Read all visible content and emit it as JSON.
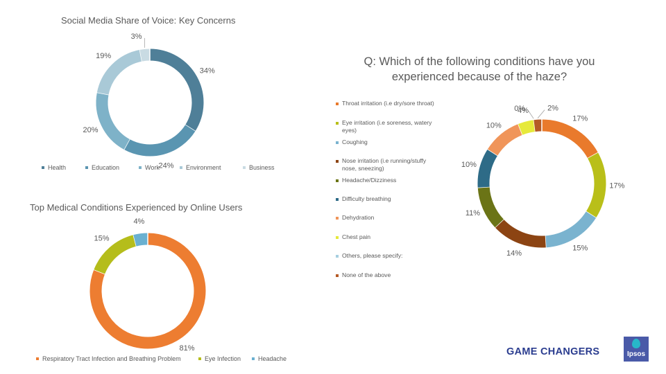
{
  "chart_data": [
    {
      "id": "c1",
      "type": "pie",
      "title": "Social Media Share of Voice: Key Concerns",
      "categories": [
        "Health",
        "Education",
        "Work",
        "Environment",
        "Business"
      ],
      "values": [
        34,
        24,
        20,
        19,
        3
      ],
      "labels": [
        "34%",
        "24%",
        "20%",
        "19%",
        "3%"
      ],
      "colors": [
        "#4f7f98",
        "#5a95b1",
        "#7eb2c8",
        "#a9c9d7",
        "#c9dbe3"
      ],
      "legend": "bottom"
    },
    {
      "id": "c2",
      "type": "pie",
      "title": "Top Medical Conditions Experienced by Online Users",
      "categories": [
        "Respiratory Tract Infection and Breathing Problem",
        "Eye Infection",
        "Headache"
      ],
      "values": [
        81,
        15,
        4
      ],
      "labels": [
        "81%",
        "15%",
        "4%"
      ],
      "colors": [
        "#ed7d31",
        "#b5bd1b",
        "#6ab0d0"
      ],
      "legend": "bottom"
    },
    {
      "id": "c3",
      "type": "pie",
      "title": "Q: Which of the following conditions have you experienced because of the haze?",
      "title_lines": [
        "Q: Which of the following conditions have you",
        "experienced because of the haze?"
      ],
      "categories": [
        "Throat irritation (i.e dry/sore throat)",
        "Eye irritation (i.e soreness, watery eyes)",
        "Coughing",
        "Nose irritation (i.e running/stuffy nose, sneezing)",
        "Headache/Dizziness",
        "Difficulty breathing",
        "Dehydration",
        "Chest pain",
        "Others, please specify:",
        "None of the above"
      ],
      "legend_lines": [
        [
          "Throat irritation (i.e dry/sore throat)"
        ],
        [
          "Eye irritation (i.e soreness, watery",
          "eyes)"
        ],
        [
          "Coughing"
        ],
        [
          "Nose irritation (i.e running/stuffy",
          "nose, sneezing)"
        ],
        [
          "Headache/Dizziness"
        ],
        [
          "Difficulty breathing"
        ],
        [
          "Dehydration"
        ],
        [
          "Chest pain"
        ],
        [
          "Others, please specify:"
        ],
        [
          "None of the above"
        ]
      ],
      "values": [
        17,
        17,
        15,
        14,
        11,
        10,
        10,
        4,
        0,
        2
      ],
      "labels": [
        "17%",
        "17%",
        "15%",
        "14%",
        "11%",
        "10%",
        "10%",
        "4%",
        "0%",
        "2%"
      ],
      "colors": [
        "#e97a2c",
        "#b9bf19",
        "#7ab3cf",
        "#8c4413",
        "#6b7416",
        "#2e6b87",
        "#f0955a",
        "#e6e93a",
        "#a6cfe0",
        "#b55a25"
      ],
      "legend": "left"
    }
  ],
  "legend1": [
    "Health",
    "Education",
    "Work",
    "Environment",
    "Business"
  ],
  "legend2": [
    "Respiratory Tract Infection and Breathing Problem",
    "Eye Infection",
    "Headache"
  ],
  "brand": {
    "text": "GAME CHANGERS",
    "logo_text": "Ipsos"
  }
}
